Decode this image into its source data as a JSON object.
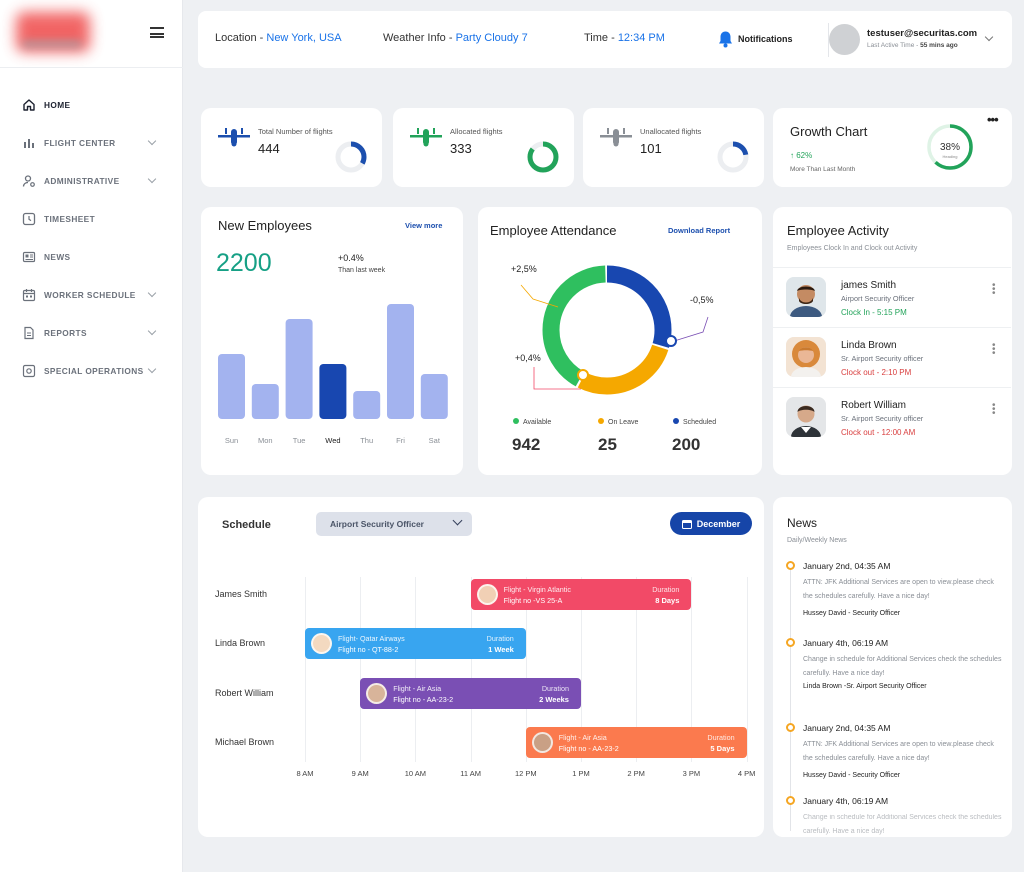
{
  "sidebar": {
    "items": [
      {
        "label": "HOME",
        "icon": "home-icon",
        "active": true
      },
      {
        "label": "FLIGHT CENTER",
        "icon": "bar-chart-icon",
        "has_chevron": true
      },
      {
        "label": "ADMINISTRATIVE",
        "icon": "user-settings-icon",
        "has_chevron": true
      },
      {
        "label": "TIMESHEET",
        "icon": "clock-icon"
      },
      {
        "label": "NEWS",
        "icon": "newspaper-icon"
      },
      {
        "label": "WORKER SCHEDULE",
        "icon": "calendar-icon",
        "has_chevron": true
      },
      {
        "label": "REPORTS",
        "icon": "document-icon",
        "has_chevron": true
      },
      {
        "label": "SPECIAL OPERATIONS",
        "icon": "target-icon",
        "has_chevron": true
      }
    ]
  },
  "topbar": {
    "location_label": "Location - ",
    "location_value": "New York, USA",
    "weather_label": "Weather Info - ",
    "weather_value": "Party Cloudy 7",
    "time_label": "Time - ",
    "time_value": "12:34 PM",
    "notifications_label": "Notifications",
    "user_email": "testuser@securitas.com",
    "last_active_label": "Last Active Time - ",
    "last_active_value": "55 mins ago"
  },
  "stats": [
    {
      "label": "Total Number of flights",
      "value": "444",
      "fraction": 0.33,
      "color": "#1c4fae",
      "icon": "airplane-icon"
    },
    {
      "label": "Allocated flights",
      "value": "333",
      "fraction": 0.85,
      "color": "#22a35a",
      "icon": "airplane-icon"
    },
    {
      "label": "Unallocated flights",
      "value": "101",
      "fraction": 0.22,
      "color": "#1c4fae",
      "icon": "airplane-icon"
    }
  ],
  "growth": {
    "title": "Growth Chart",
    "pct": "↑ 62%",
    "sub": "More Than Last Month",
    "ring_value": "38%",
    "ring_sub": "Heading",
    "ring_fraction": 0.62,
    "color": "#22a35a"
  },
  "new_employees": {
    "title": "New Employees",
    "link": "View more",
    "count": "2200",
    "change": "+0.4%",
    "change_sub": "Than last week"
  },
  "chart_data": {
    "type": "bar",
    "categories": [
      "Sun",
      "Mon",
      "Tue",
      "Wed",
      "Thu",
      "Fri",
      "Sat"
    ],
    "values": [
      65,
      35,
      100,
      55,
      28,
      115,
      45
    ],
    "highlight_index": 3,
    "colors": {
      "bar": "#a3b3ef",
      "highlight": "#1847b0"
    }
  },
  "attendance": {
    "title": "Employee Attendance",
    "link": "Download Report",
    "labels": {
      "top_left": "+2,5%",
      "right": "-0,5%",
      "left": "+0,4%"
    },
    "segments": [
      {
        "name": "Available",
        "value": "942",
        "fraction": 0.42,
        "color": "#2fbf5f"
      },
      {
        "name": "On Leave",
        "value": "25",
        "fraction": 0.28,
        "color": "#f5a800"
      },
      {
        "name": "Scheduled",
        "value": "200",
        "fraction": 0.3,
        "color": "#1847b0"
      }
    ]
  },
  "activity": {
    "title": "Employee Activity",
    "subtitle": "Employees Clock In and Clock out Activity",
    "rows": [
      {
        "name": "james Smith",
        "role": "Airport Security Officer",
        "time": "Clock In - 5:15 PM",
        "status": "in"
      },
      {
        "name": "Linda Brown",
        "role": "Sr. Airport Security officer",
        "time": "Clock out - 2:10 PM",
        "status": "out"
      },
      {
        "name": "Robert William",
        "role": "Sr. Airport Security officer",
        "time": "Clock out - 12:00 AM",
        "status": "out"
      }
    ]
  },
  "schedule": {
    "title": "Schedule",
    "select_value": "Airport Security Officer",
    "month_button": "December",
    "rows": [
      "James Smith",
      "Linda Brown",
      "Robert William",
      "Michael Brown"
    ],
    "ticks": [
      "8 AM",
      "9 AM",
      "10 AM",
      "11 AM",
      "12 PM",
      "1 PM",
      "2 PM",
      "3 PM",
      "4 PM"
    ],
    "bars": [
      {
        "flight": "Flight - Virgin Atlantic",
        "flight_no": "Flight no -VS 25-A",
        "duration_label": "Duration",
        "duration": "8 Days",
        "color": "#f24a67",
        "start": "11 AM",
        "end": "3 PM"
      },
      {
        "flight": "Flight- Qatar Airways",
        "flight_no": "Flight no - QT-88-2",
        "duration_label": "Duration",
        "duration": "1 Week",
        "color": "#38a5f0",
        "start": "8 AM",
        "end": "12 PM"
      },
      {
        "flight": "Flight - Air Asia",
        "flight_no": "Flight no - AA-23-2",
        "duration_label": "Duration",
        "duration": "2 Weeks",
        "color": "#7a4fb4",
        "start": "9 AM",
        "end": "1 PM"
      },
      {
        "flight": "Flight - Air Asia",
        "flight_no": "Flight no - AA-23-2",
        "duration_label": "Duration",
        "duration": "5 Days",
        "color": "#fb7a4e",
        "start": "12 PM",
        "end": "4 PM"
      }
    ]
  },
  "news": {
    "title": "News",
    "subtitle": "Daily/Weekly News",
    "items": [
      {
        "date": "January 2nd, 04:35 AM",
        "body": "ATTN: JFK Additional Services are open to view.please check the schedules carefully. Have a nice day!",
        "by": "Hussey David - Security Officer"
      },
      {
        "date": "January 4th, 06:19 AM",
        "body": "Change in schedule for Additional Services check the schedules carefully. Have a nice day!",
        "by": "Linda Brown -Sr. Airport  Security Officer"
      },
      {
        "date": "January 2nd, 04:35 AM",
        "body": "ATTN: JFK Additional Services are open to view.please check the schedules carefully. Have a nice day!",
        "by": "Hussey David - Security Officer"
      },
      {
        "date": "January 4th, 06:19 AM",
        "body": "Change in schedule for Additional Services check the schedules carefully. Have a nice day!",
        "by": ""
      }
    ]
  }
}
